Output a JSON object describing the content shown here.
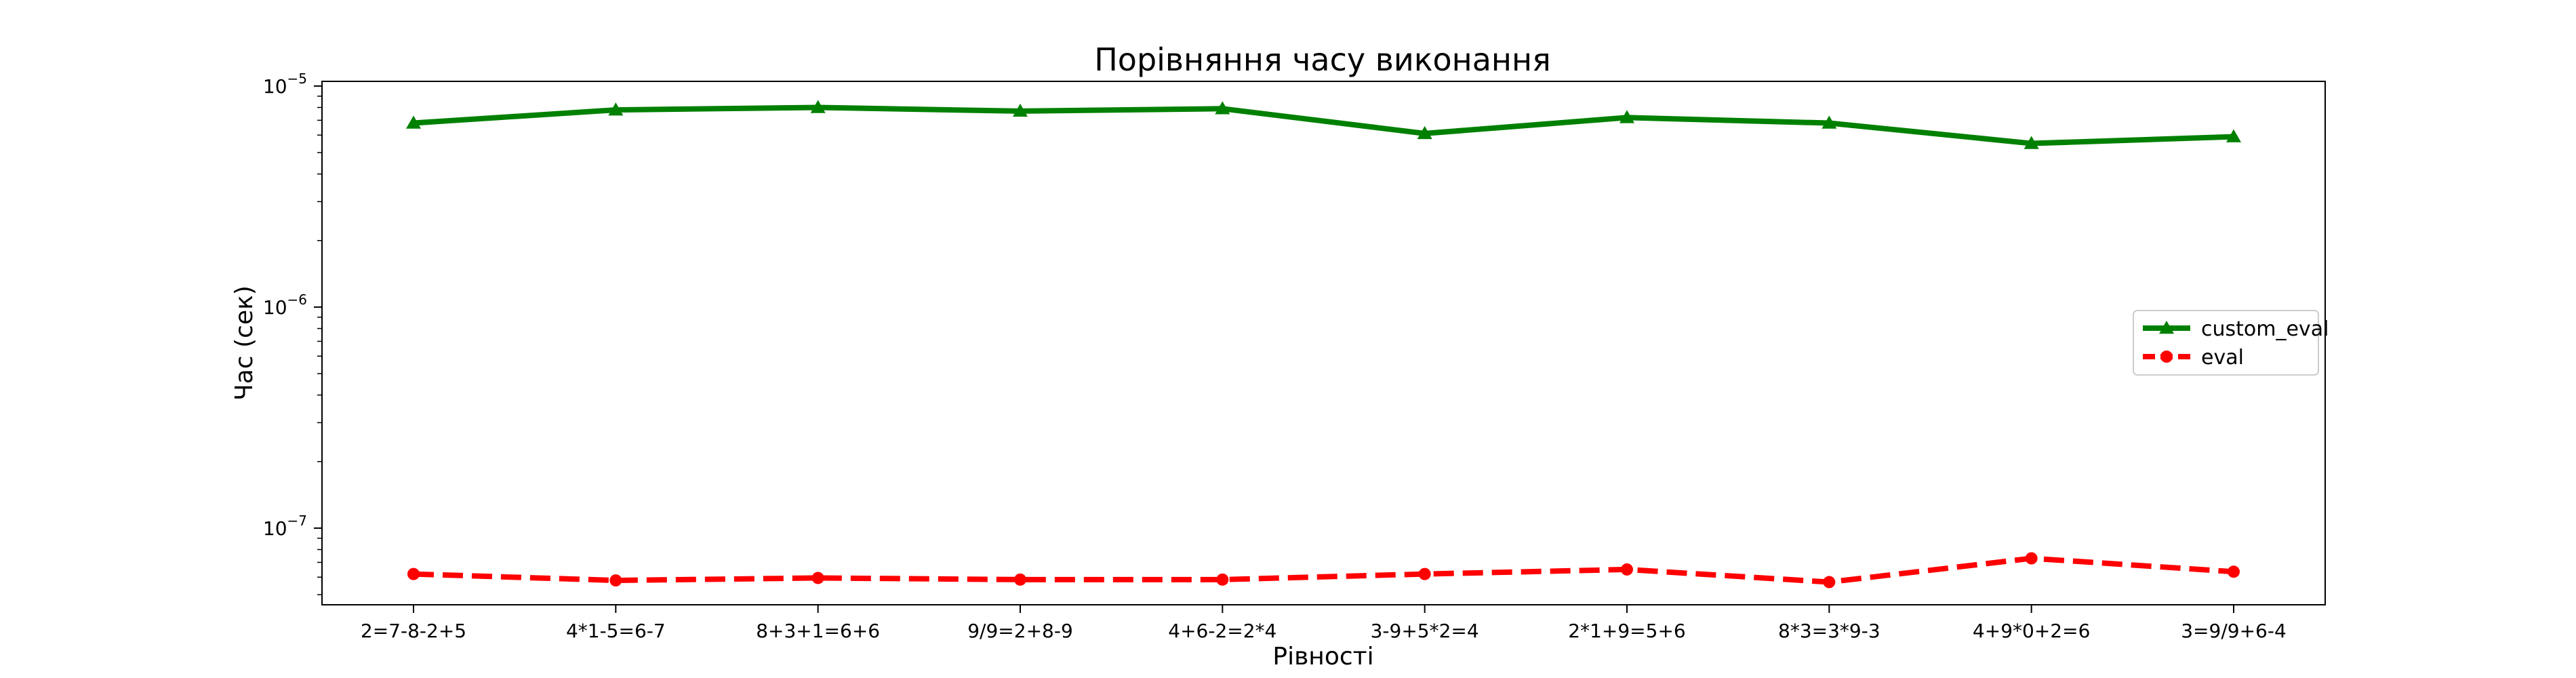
{
  "chart_data": {
    "type": "line",
    "title": "Порівняння часу виконання",
    "xlabel": "Рівності",
    "ylabel": "Час (сек)",
    "y_scale": "log",
    "ylim": [
      4.5e-08,
      1.05e-05
    ],
    "y_ticks": [
      {
        "value": 1e-05,
        "base": "10",
        "exp": "−5"
      },
      {
        "value": 1e-06,
        "base": "10",
        "exp": "−6"
      },
      {
        "value": 1e-07,
        "base": "10",
        "exp": "−7"
      }
    ],
    "grid": false,
    "legend_position": "center-right",
    "categories": [
      "2=7-8-2+5",
      "4*1-5=6-7",
      "8+3+1=6+6",
      "9/9=2+8-9",
      "4+6-2=2*4",
      "3-9+5*2=4",
      "2*1+9=5+6",
      "8*3=3*9-3",
      "4+9*0+2=6",
      "3=9/9+6-4"
    ],
    "series": [
      {
        "name": "custom_eval",
        "color": "#008000",
        "marker": "triangle",
        "line_style": "solid",
        "values": [
          6.8e-06,
          7.8e-06,
          8e-06,
          7.7e-06,
          7.9e-06,
          6.1e-06,
          7.2e-06,
          6.8e-06,
          5.5e-06,
          5.9e-06
        ]
      },
      {
        "name": "eval",
        "color": "#ff0000",
        "marker": "circle",
        "line_style": "dashed",
        "values": [
          6.2e-08,
          5.8e-08,
          5.95e-08,
          5.85e-08,
          5.85e-08,
          6.2e-08,
          6.5e-08,
          5.7e-08,
          7.3e-08,
          6.35e-08
        ]
      }
    ]
  }
}
